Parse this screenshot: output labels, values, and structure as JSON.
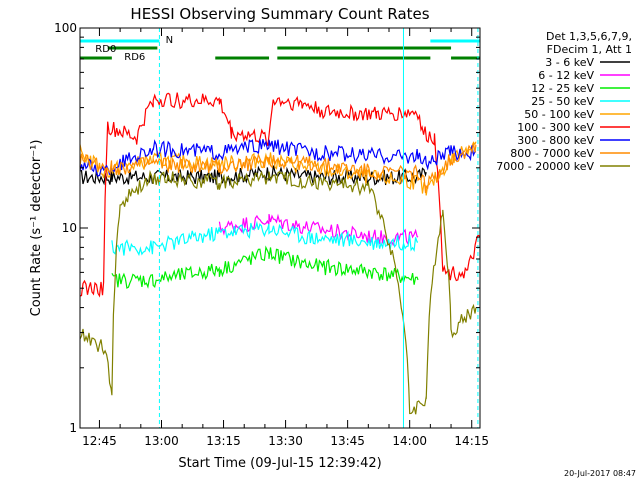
{
  "chart_data": {
    "type": "line",
    "title": "HESSI Observing Summary Count Rates",
    "xlabel": "Start Time (09-Jul-15 12:39:42)",
    "ylabel": "Count Rate (s⁻¹ detector⁻¹)",
    "x_range_min": [
      40.3,
      137
    ],
    "x_ticks": [
      {
        "min": 45,
        "label": "12:45"
      },
      {
        "min": 60,
        "label": "13:00"
      },
      {
        "min": 75,
        "label": "13:15"
      },
      {
        "min": 90,
        "label": "13:30"
      },
      {
        "min": 105,
        "label": "13:45"
      },
      {
        "min": 120,
        "label": "14:00"
      },
      {
        "min": 135,
        "label": "14:15"
      }
    ],
    "y_scale": "log",
    "y_range": [
      1,
      100
    ],
    "y_ticks": [
      {
        "v": 1,
        "label": "1"
      },
      {
        "v": 10,
        "label": "10"
      },
      {
        "v": 100,
        "label": "100"
      }
    ],
    "legend_header": [
      "Det 1,3,5,6,7,9,",
      "FDecim 1, Att 1"
    ],
    "series": [
      {
        "name": "3 - 6 keV",
        "color": "#000000",
        "points": [
          [
            40.3,
            18
          ],
          [
            48,
            18
          ],
          [
            58,
            18
          ],
          [
            74,
            18
          ],
          [
            86,
            19
          ],
          [
            96,
            18
          ],
          [
            112,
            18
          ],
          [
            122,
            18
          ],
          [
            124,
            19
          ]
        ]
      },
      {
        "name": "6 - 12 keV",
        "color": "#ff00ff",
        "points": [
          [
            74,
            10
          ],
          [
            86,
            11
          ],
          [
            96,
            10
          ],
          [
            112,
            9
          ],
          [
            122,
            9
          ]
        ]
      },
      {
        "name": "12 - 25 keV",
        "color": "#00ee00",
        "points": [
          [
            48,
            5.5
          ],
          [
            58,
            5.5
          ],
          [
            74,
            6.2
          ],
          [
            86,
            7.5
          ],
          [
            96,
            6.5
          ],
          [
            112,
            6
          ],
          [
            122,
            5.5
          ]
        ]
      },
      {
        "name": "25 - 50 keV",
        "color": "#00ffff",
        "points": [
          [
            48,
            8
          ],
          [
            58,
            8
          ],
          [
            74,
            9.5
          ],
          [
            86,
            10
          ],
          [
            96,
            9
          ],
          [
            112,
            8.5
          ],
          [
            122,
            8.5
          ]
        ]
      },
      {
        "name": "50 - 100 keV",
        "color": "#ffa500",
        "points": [
          [
            40.3,
            24
          ],
          [
            46,
            19
          ],
          [
            58,
            22
          ],
          [
            74,
            21
          ],
          [
            86,
            22
          ],
          [
            96,
            20
          ],
          [
            110,
            18
          ],
          [
            122,
            17
          ],
          [
            124,
            15
          ],
          [
            130,
            22
          ],
          [
            136,
            27
          ]
        ]
      },
      {
        "name": "100 - 300 keV",
        "color": "#ff0000",
        "points": [
          [
            40.3,
            5
          ],
          [
            46,
            5
          ],
          [
            47,
            32
          ],
          [
            54,
            28
          ],
          [
            58,
            44
          ],
          [
            74,
            43
          ],
          [
            77,
            30
          ],
          [
            86,
            28
          ],
          [
            87,
            44
          ],
          [
            94,
            42
          ],
          [
            100,
            38
          ],
          [
            112,
            37
          ],
          [
            122,
            38
          ],
          [
            123,
            30
          ],
          [
            126,
            28
          ],
          [
            128,
            6
          ],
          [
            134,
            6
          ],
          [
            137,
            9
          ]
        ]
      },
      {
        "name": "300 - 800 keV",
        "color": "#0000ff",
        "points": [
          [
            40.3,
            21
          ],
          [
            46,
            19
          ],
          [
            58,
            25
          ],
          [
            74,
            24
          ],
          [
            86,
            26
          ],
          [
            96,
            24
          ],
          [
            112,
            23
          ],
          [
            122,
            23
          ],
          [
            124,
            21
          ],
          [
            130,
            24
          ],
          [
            136,
            24
          ]
        ]
      },
      {
        "name": "800 - 7000 keV",
        "color": "#ff8c00",
        "points": [
          [
            40.3,
            22
          ],
          [
            48,
            20
          ],
          [
            58,
            21
          ],
          [
            74,
            20
          ],
          [
            86,
            22
          ],
          [
            96,
            21
          ],
          [
            112,
            19
          ],
          [
            122,
            19
          ],
          [
            124,
            16
          ],
          [
            130,
            22
          ],
          [
            136,
            26
          ]
        ]
      },
      {
        "name": "7000 - 20000 keV",
        "color": "#808000",
        "points": [
          [
            40.3,
            3
          ],
          [
            46,
            2.5
          ],
          [
            48,
            1.5
          ],
          [
            50,
            13
          ],
          [
            58,
            18
          ],
          [
            74,
            17
          ],
          [
            86,
            18
          ],
          [
            96,
            17
          ],
          [
            110,
            16
          ],
          [
            120,
            1.2
          ],
          [
            124,
            1.4
          ],
          [
            128,
            12
          ],
          [
            130,
            3
          ],
          [
            136,
            4
          ]
        ]
      }
    ],
    "annotations": [
      {
        "label": "RD0",
        "bar": [
          40.3,
          59.5
        ],
        "color": "#00ffff"
      },
      {
        "label": "N",
        "color": "#00ffff"
      },
      {
        "label": "RD6",
        "color": "#008000"
      }
    ],
    "footer_date": "20-Jul-2017 08:47"
  }
}
